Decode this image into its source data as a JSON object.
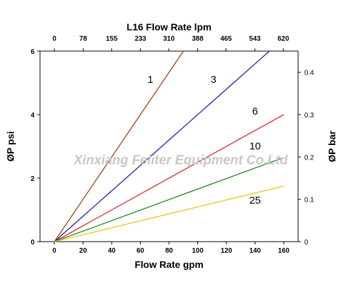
{
  "chart_data": {
    "type": "line",
    "title": "L16  Flow Rate lpm",
    "xlabel": "Flow Rate gpm",
    "ylabel": "ØP psi",
    "y2label": "ØP bar",
    "xlim": [
      -10,
      170
    ],
    "ylim": [
      0,
      6
    ],
    "y2lim": [
      0,
      0.45
    ],
    "x_ticks": [
      0,
      20,
      40,
      60,
      80,
      100,
      120,
      140,
      160
    ],
    "x_tick_labels": [
      "0",
      "20",
      "40",
      "60",
      "80",
      "100",
      "120",
      "140",
      "160"
    ],
    "y_ticks": [
      0,
      2,
      4,
      6
    ],
    "y_tick_labels": [
      "0",
      "2",
      "4",
      "6"
    ],
    "y2_ticks": [
      0,
      0.1,
      0.2,
      0.3,
      0.4
    ],
    "y2_tick_labels": [
      "0",
      "0.1",
      "0.2",
      "0.3",
      "0.4"
    ],
    "x2_ticks": [
      0,
      78,
      155,
      233,
      310,
      388,
      465,
      543,
      620
    ],
    "x2_tick_labels": [
      "0",
      "78",
      "155",
      "233",
      "310",
      "388",
      "465",
      "543",
      "620"
    ],
    "x2_lim_lpm": [
      -39,
      660
    ],
    "grid": false,
    "series": [
      {
        "name": "1",
        "color": "#a83c0e",
        "x": [
          0,
          90
        ],
        "y": [
          0,
          6.0
        ],
        "label_at": [
          67,
          5.0
        ]
      },
      {
        "name": "3",
        "color": "#1a1aa8",
        "x": [
          0,
          150
        ],
        "y": [
          0,
          6.0
        ],
        "label_at": [
          111,
          5.0
        ]
      },
      {
        "name": "6",
        "color": "#d42a2a",
        "x": [
          0,
          160
        ],
        "y": [
          0,
          4.0
        ],
        "label_at": [
          140,
          4.0
        ]
      },
      {
        "name": "10",
        "color": "#1a8a1a",
        "x": [
          0,
          160
        ],
        "y": [
          0,
          2.65
        ],
        "label_at": [
          140,
          2.9
        ]
      },
      {
        "name": "25",
        "color": "#e6c81a",
        "x": [
          0,
          160
        ],
        "y": [
          0,
          1.75
        ],
        "label_at": [
          140,
          1.2
        ]
      }
    ]
  },
  "watermark": "Xinxiang Feliter Equipment Co.Ltd",
  "colors": {
    "axis": "#000000",
    "background": "#ffffff",
    "watermark": "#c8c8c8"
  }
}
